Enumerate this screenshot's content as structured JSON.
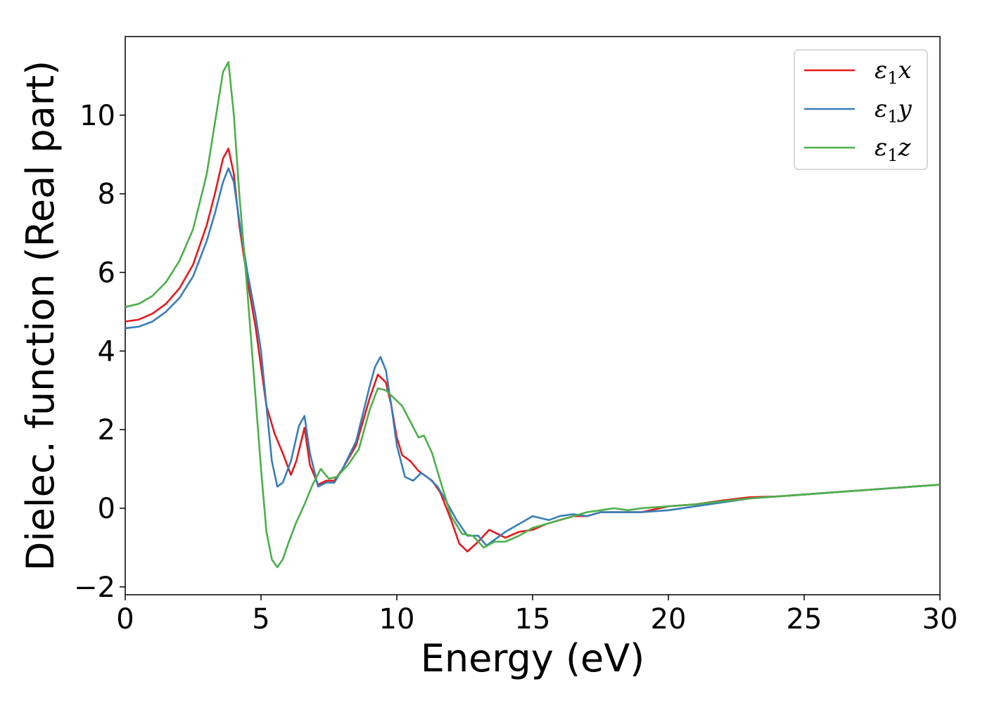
{
  "chart_data": {
    "type": "line",
    "xlabel": "Energy (eV)",
    "ylabel": "Dielec. function (Real part)",
    "xlim": [
      0,
      30
    ],
    "ylim": [
      -2.2,
      12.0
    ],
    "xticks": [
      0,
      5,
      10,
      15,
      20,
      25,
      30
    ],
    "xtick_labels": [
      "0",
      "5",
      "10",
      "15",
      "20",
      "25",
      "30"
    ],
    "yticks": [
      -2,
      0,
      2,
      4,
      6,
      8,
      10
    ],
    "ytick_labels": [
      "−2",
      "0",
      "2",
      "4",
      "6",
      "8",
      "10"
    ],
    "grid": false,
    "legend_position": "top-right",
    "series": [
      {
        "name": "ε₁x",
        "legend_symbol": "ε",
        "legend_sub": "1",
        "legend_var": "x",
        "color": "#e41a1c",
        "x": [
          0,
          0.5,
          1,
          1.5,
          2,
          2.5,
          3,
          3.3,
          3.6,
          3.8,
          4.0,
          4.2,
          4.5,
          4.8,
          5.0,
          5.2,
          5.5,
          5.8,
          6.1,
          6.3,
          6.6,
          6.8,
          7.1,
          7.4,
          7.7,
          8.0,
          8.5,
          9.0,
          9.3,
          9.6,
          9.8,
          10.0,
          10.2,
          10.5,
          10.8,
          11.0,
          11.3,
          11.6,
          12.0,
          12.3,
          12.6,
          13.0,
          13.4,
          13.7,
          14.0,
          14.5,
          15.0,
          15.5,
          16.0,
          16.5,
          17.0,
          17.5,
          18.0,
          19.0,
          20.0,
          21.0,
          22.0,
          23.0,
          24.0,
          25.0,
          26.0,
          27.0,
          28.0,
          29.0,
          30.0
        ],
        "y": [
          4.75,
          4.8,
          4.95,
          5.2,
          5.6,
          6.2,
          7.2,
          8.0,
          8.9,
          9.15,
          8.5,
          7.2,
          5.8,
          4.6,
          3.6,
          2.6,
          1.9,
          1.4,
          0.85,
          1.2,
          2.05,
          1.1,
          0.6,
          0.7,
          0.7,
          1.0,
          1.6,
          2.8,
          3.4,
          3.2,
          2.6,
          1.8,
          1.35,
          1.2,
          0.95,
          0.85,
          0.7,
          0.4,
          -0.3,
          -0.9,
          -1.1,
          -0.85,
          -0.55,
          -0.65,
          -0.75,
          -0.6,
          -0.55,
          -0.4,
          -0.3,
          -0.2,
          -0.2,
          -0.1,
          -0.1,
          -0.1,
          0.05,
          0.1,
          0.2,
          0.28,
          0.3,
          0.35,
          0.4,
          0.45,
          0.5,
          0.55,
          0.6
        ]
      },
      {
        "name": "ε₁y",
        "legend_symbol": "ε",
        "legend_sub": "1",
        "legend_var": "y",
        "color": "#377eb8",
        "x": [
          0,
          0.5,
          1,
          1.5,
          2,
          2.5,
          3,
          3.3,
          3.6,
          3.8,
          4.0,
          4.2,
          4.5,
          4.8,
          5.0,
          5.2,
          5.4,
          5.6,
          5.8,
          6.1,
          6.4,
          6.6,
          6.8,
          7.1,
          7.4,
          7.7,
          8.0,
          8.5,
          9.0,
          9.2,
          9.4,
          9.6,
          9.8,
          10.0,
          10.3,
          10.6,
          10.9,
          11.2,
          11.5,
          11.8,
          12.2,
          12.6,
          13.0,
          13.3,
          13.6,
          14.0,
          14.5,
          15.0,
          15.3,
          15.6,
          16.0,
          16.5,
          17.0,
          17.5,
          18.0,
          19.0,
          20.0,
          21.0,
          22.0,
          23.0,
          24.0,
          25.0,
          26.0,
          27.0,
          28.0,
          29.0,
          30.0
        ],
        "y": [
          4.58,
          4.62,
          4.75,
          5.0,
          5.35,
          5.9,
          6.8,
          7.5,
          8.3,
          8.65,
          8.3,
          7.3,
          6.0,
          4.9,
          4.0,
          2.6,
          1.2,
          0.55,
          0.65,
          1.2,
          2.1,
          2.35,
          1.4,
          0.55,
          0.65,
          0.65,
          1.0,
          1.7,
          3.1,
          3.6,
          3.85,
          3.5,
          2.6,
          1.6,
          0.8,
          0.7,
          0.9,
          0.75,
          0.55,
          0.2,
          -0.3,
          -0.7,
          -0.7,
          -0.95,
          -0.8,
          -0.6,
          -0.4,
          -0.2,
          -0.25,
          -0.3,
          -0.2,
          -0.15,
          -0.2,
          -0.1,
          -0.1,
          -0.1,
          -0.05,
          0.05,
          0.15,
          0.25,
          0.3,
          0.35,
          0.4,
          0.45,
          0.5,
          0.55,
          0.6
        ]
      },
      {
        "name": "ε₁z",
        "legend_symbol": "ε",
        "legend_sub": "1",
        "legend_var": "z",
        "color": "#4daf4a",
        "x": [
          0,
          0.5,
          1,
          1.5,
          2,
          2.5,
          3,
          3.3,
          3.6,
          3.8,
          4.0,
          4.2,
          4.5,
          4.8,
          5.0,
          5.2,
          5.4,
          5.6,
          5.8,
          6.0,
          6.3,
          6.6,
          6.9,
          7.2,
          7.5,
          7.8,
          8.2,
          8.6,
          9.0,
          9.3,
          9.6,
          9.9,
          10.2,
          10.5,
          10.8,
          11.0,
          11.3,
          11.6,
          12.0,
          12.4,
          12.8,
          13.2,
          13.6,
          14.0,
          14.5,
          15.0,
          15.5,
          16.0,
          16.5,
          17.0,
          17.5,
          18.0,
          18.5,
          19.0,
          20.0,
          21.0,
          22.0,
          23.0,
          24.0,
          25.0,
          26.0,
          27.0,
          28.0,
          29.0,
          30.0
        ],
        "y": [
          5.12,
          5.2,
          5.4,
          5.75,
          6.3,
          7.1,
          8.5,
          9.8,
          11.1,
          11.35,
          10.0,
          8.0,
          5.5,
          2.8,
          1.0,
          -0.6,
          -1.3,
          -1.5,
          -1.3,
          -0.9,
          -0.35,
          0.1,
          0.6,
          1.0,
          0.75,
          0.8,
          1.1,
          1.5,
          2.5,
          3.05,
          3.0,
          2.8,
          2.6,
          2.2,
          1.8,
          1.85,
          1.4,
          0.7,
          -0.2,
          -0.65,
          -0.7,
          -1.0,
          -0.85,
          -0.85,
          -0.7,
          -0.5,
          -0.4,
          -0.3,
          -0.2,
          -0.1,
          -0.05,
          0.0,
          -0.05,
          0.0,
          0.05,
          0.1,
          0.18,
          0.25,
          0.3,
          0.35,
          0.4,
          0.45,
          0.5,
          0.55,
          0.6
        ]
      }
    ]
  }
}
